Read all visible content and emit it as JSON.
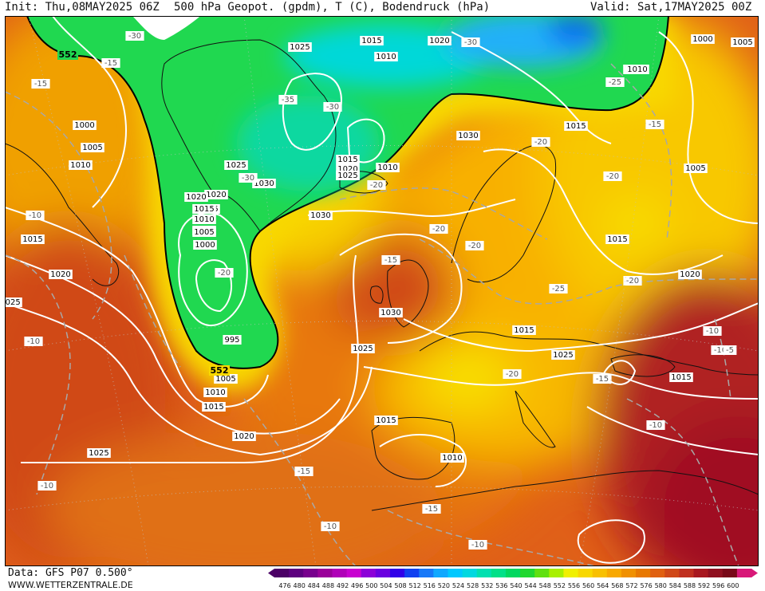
{
  "header": {
    "init": "Init: Thu,08MAY2025 06Z",
    "title": "500 hPa Geopot. (gpdm), T (C), Bodendruck (hPa)",
    "valid": "Valid: Sat,17MAY2025 00Z"
  },
  "footer": {
    "data_source": "Data: GFS P07 0.500°",
    "site": "WWW.WETTERZENTRALE.DE"
  },
  "colorbar": {
    "ticks": [
      "476",
      "480",
      "484",
      "488",
      "492",
      "496",
      "500",
      "504",
      "508",
      "512",
      "516",
      "520",
      "524",
      "528",
      "532",
      "536",
      "540",
      "544",
      "548",
      "552",
      "556",
      "560",
      "564",
      "568",
      "572",
      "576",
      "580",
      "584",
      "588",
      "592",
      "596",
      "600"
    ],
    "colors": [
      "#4b0066",
      "#5d007f",
      "#78008e",
      "#9a009a",
      "#b000b8",
      "#c800d0",
      "#8c00d8",
      "#6a00e0",
      "#3000e8",
      "#1040f0",
      "#1878f8",
      "#10a8ff",
      "#00c8ff",
      "#00d8e0",
      "#00e0b0",
      "#00e088",
      "#00d860",
      "#20d830",
      "#60e010",
      "#a8f000",
      "#f0f000",
      "#f8d800",
      "#f8c000",
      "#f8a800",
      "#f09000",
      "#e87800",
      "#e06010",
      "#d04818",
      "#c03020",
      "#a81820",
      "#901020",
      "#780818",
      "#d81878"
    ]
  },
  "map": {
    "highlight_isohypse": "552",
    "pressure_labels": [
      "1000",
      "1005",
      "1010",
      "1015",
      "1020",
      "1025",
      "1030",
      "995"
    ],
    "pressure_label_items": [
      {
        "text": "1025"
      },
      {
        "text": "1015"
      },
      {
        "text": "1010"
      },
      {
        "text": "1020"
      },
      {
        "text": "1010"
      },
      {
        "text": "1000"
      },
      {
        "text": "1005"
      },
      {
        "text": "1015"
      },
      {
        "text": "1005"
      },
      {
        "text": "1010"
      },
      {
        "text": "1015"
      },
      {
        "text": "1020"
      },
      {
        "text": "1025"
      },
      {
        "text": "1000"
      },
      {
        "text": "1005"
      },
      {
        "text": "1010"
      },
      {
        "text": "1015"
      },
      {
        "text": "1020"
      },
      {
        "text": "1030"
      },
      {
        "text": "1025"
      },
      {
        "text": "1015"
      },
      {
        "text": "1010"
      },
      {
        "text": "1005"
      },
      {
        "text": "1000"
      },
      {
        "text": "995"
      },
      {
        "text": "1005"
      },
      {
        "text": "1010"
      },
      {
        "text": "1015"
      },
      {
        "text": "1020"
      },
      {
        "text": "1025"
      },
      {
        "text": "1030"
      },
      {
        "text": "1030"
      },
      {
        "text": "1025"
      },
      {
        "text": "1015"
      },
      {
        "text": "1020"
      },
      {
        "text": "1025"
      },
      {
        "text": "1030"
      },
      {
        "text": "1015"
      },
      {
        "text": "1010"
      },
      {
        "text": "1015"
      },
      {
        "text": "1010"
      },
      {
        "text": "1015"
      },
      {
        "text": "1020"
      },
      {
        "text": "1005"
      },
      {
        "text": "1025"
      },
      {
        "text": "1015"
      },
      {
        "text": "1020"
      },
      {
        "text": "1025"
      }
    ],
    "temperature_label_items": [
      {
        "text": "-30"
      },
      {
        "text": "-15"
      },
      {
        "text": "-15"
      },
      {
        "text": "-10"
      },
      {
        "text": "-10"
      },
      {
        "text": "-35"
      },
      {
        "text": "-30"
      },
      {
        "text": "-30"
      },
      {
        "text": "-20"
      },
      {
        "text": "-25"
      },
      {
        "text": "-20"
      },
      {
        "text": "-15"
      },
      {
        "text": "-20"
      },
      {
        "text": "-20"
      },
      {
        "text": "-20"
      },
      {
        "text": "-25"
      },
      {
        "text": "-20"
      },
      {
        "text": "-15"
      },
      {
        "text": "-20"
      },
      {
        "text": "-15"
      },
      {
        "text": "-15"
      },
      {
        "text": "-10"
      },
      {
        "text": "-10"
      },
      {
        "text": "-10"
      },
      {
        "text": "-10"
      },
      {
        "text": "-15"
      },
      {
        "text": "-10"
      },
      {
        "text": "-30"
      },
      {
        "text": "-20"
      },
      {
        "text": "-5"
      },
      {
        "text": "-25"
      },
      {
        "text": "-10"
      }
    ]
  }
}
